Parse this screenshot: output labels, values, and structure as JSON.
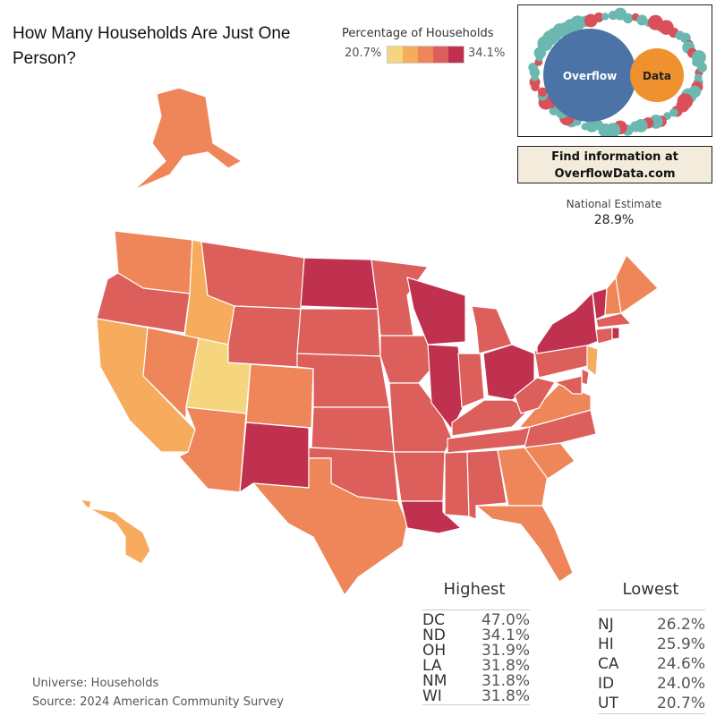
{
  "title": "How Many Households Are Just One Person?",
  "legend": {
    "title": "Percentage of Households",
    "min": "20.7%",
    "max": "34.1%",
    "colors": [
      "#f5d57e",
      "#f6ab5d",
      "#ee8659",
      "#dc5f5b",
      "#c0304f"
    ]
  },
  "logo": {
    "word1": "Overflow",
    "word2": "Data",
    "blue": "#4b73a5",
    "orange": "#f0912f",
    "teal": "#6ab8b0",
    "red": "#d9505a"
  },
  "cta": {
    "line1": "Find information at",
    "line2": "OverflowData.com"
  },
  "national": {
    "label": "National Estimate",
    "value": "28.9%"
  },
  "states": {
    "WA": 3,
    "OR": 4,
    "CA": 2,
    "ID": 2,
    "NV": 3,
    "UT": 1,
    "AZ": 3,
    "MT": 4,
    "WY": 4,
    "CO": 3,
    "NM": 5,
    "ND": 5,
    "SD": 4,
    "NE": 4,
    "KS": 4,
    "OK": 4,
    "TX": 3,
    "MN": 4,
    "IA": 4,
    "MO": 4,
    "AR": 4,
    "LA": 5,
    "WI": 5,
    "IL": 5,
    "MI": 4,
    "IN": 4,
    "OH": 5,
    "KY": 4,
    "TN": 4,
    "MS": 4,
    "AL": 4,
    "GA": 3,
    "FL": 3,
    "SC": 3,
    "NC": 4,
    "VA": 3,
    "WV": 4,
    "PA": 4,
    "NY": 5,
    "VT": 5,
    "NH": 3,
    "ME": 3,
    "MA": 4,
    "CT": 4,
    "RI": 5,
    "NJ": 2,
    "DE": 4,
    "MD": 4,
    "AK": 3,
    "HI": 2
  },
  "highest": {
    "title": "Highest",
    "rows": [
      {
        "s": "DC",
        "v": "47.0%"
      },
      {
        "s": "ND",
        "v": "34.1%"
      },
      {
        "s": "OH",
        "v": "31.9%"
      },
      {
        "s": "LA",
        "v": "31.8%"
      },
      {
        "s": "NM",
        "v": "31.8%"
      },
      {
        "s": "WI",
        "v": "31.8%"
      }
    ]
  },
  "lowest": {
    "title": "Lowest",
    "rows": [
      {
        "s": "NJ",
        "v": "26.2%"
      },
      {
        "s": "HI",
        "v": "25.9%"
      },
      {
        "s": "CA",
        "v": "24.6%"
      },
      {
        "s": "ID",
        "v": "24.0%"
      },
      {
        "s": "UT",
        "v": "20.7%"
      }
    ]
  },
  "footer": {
    "universe": "Universe: Households",
    "source": "Source: 2024 American Community Survey"
  }
}
